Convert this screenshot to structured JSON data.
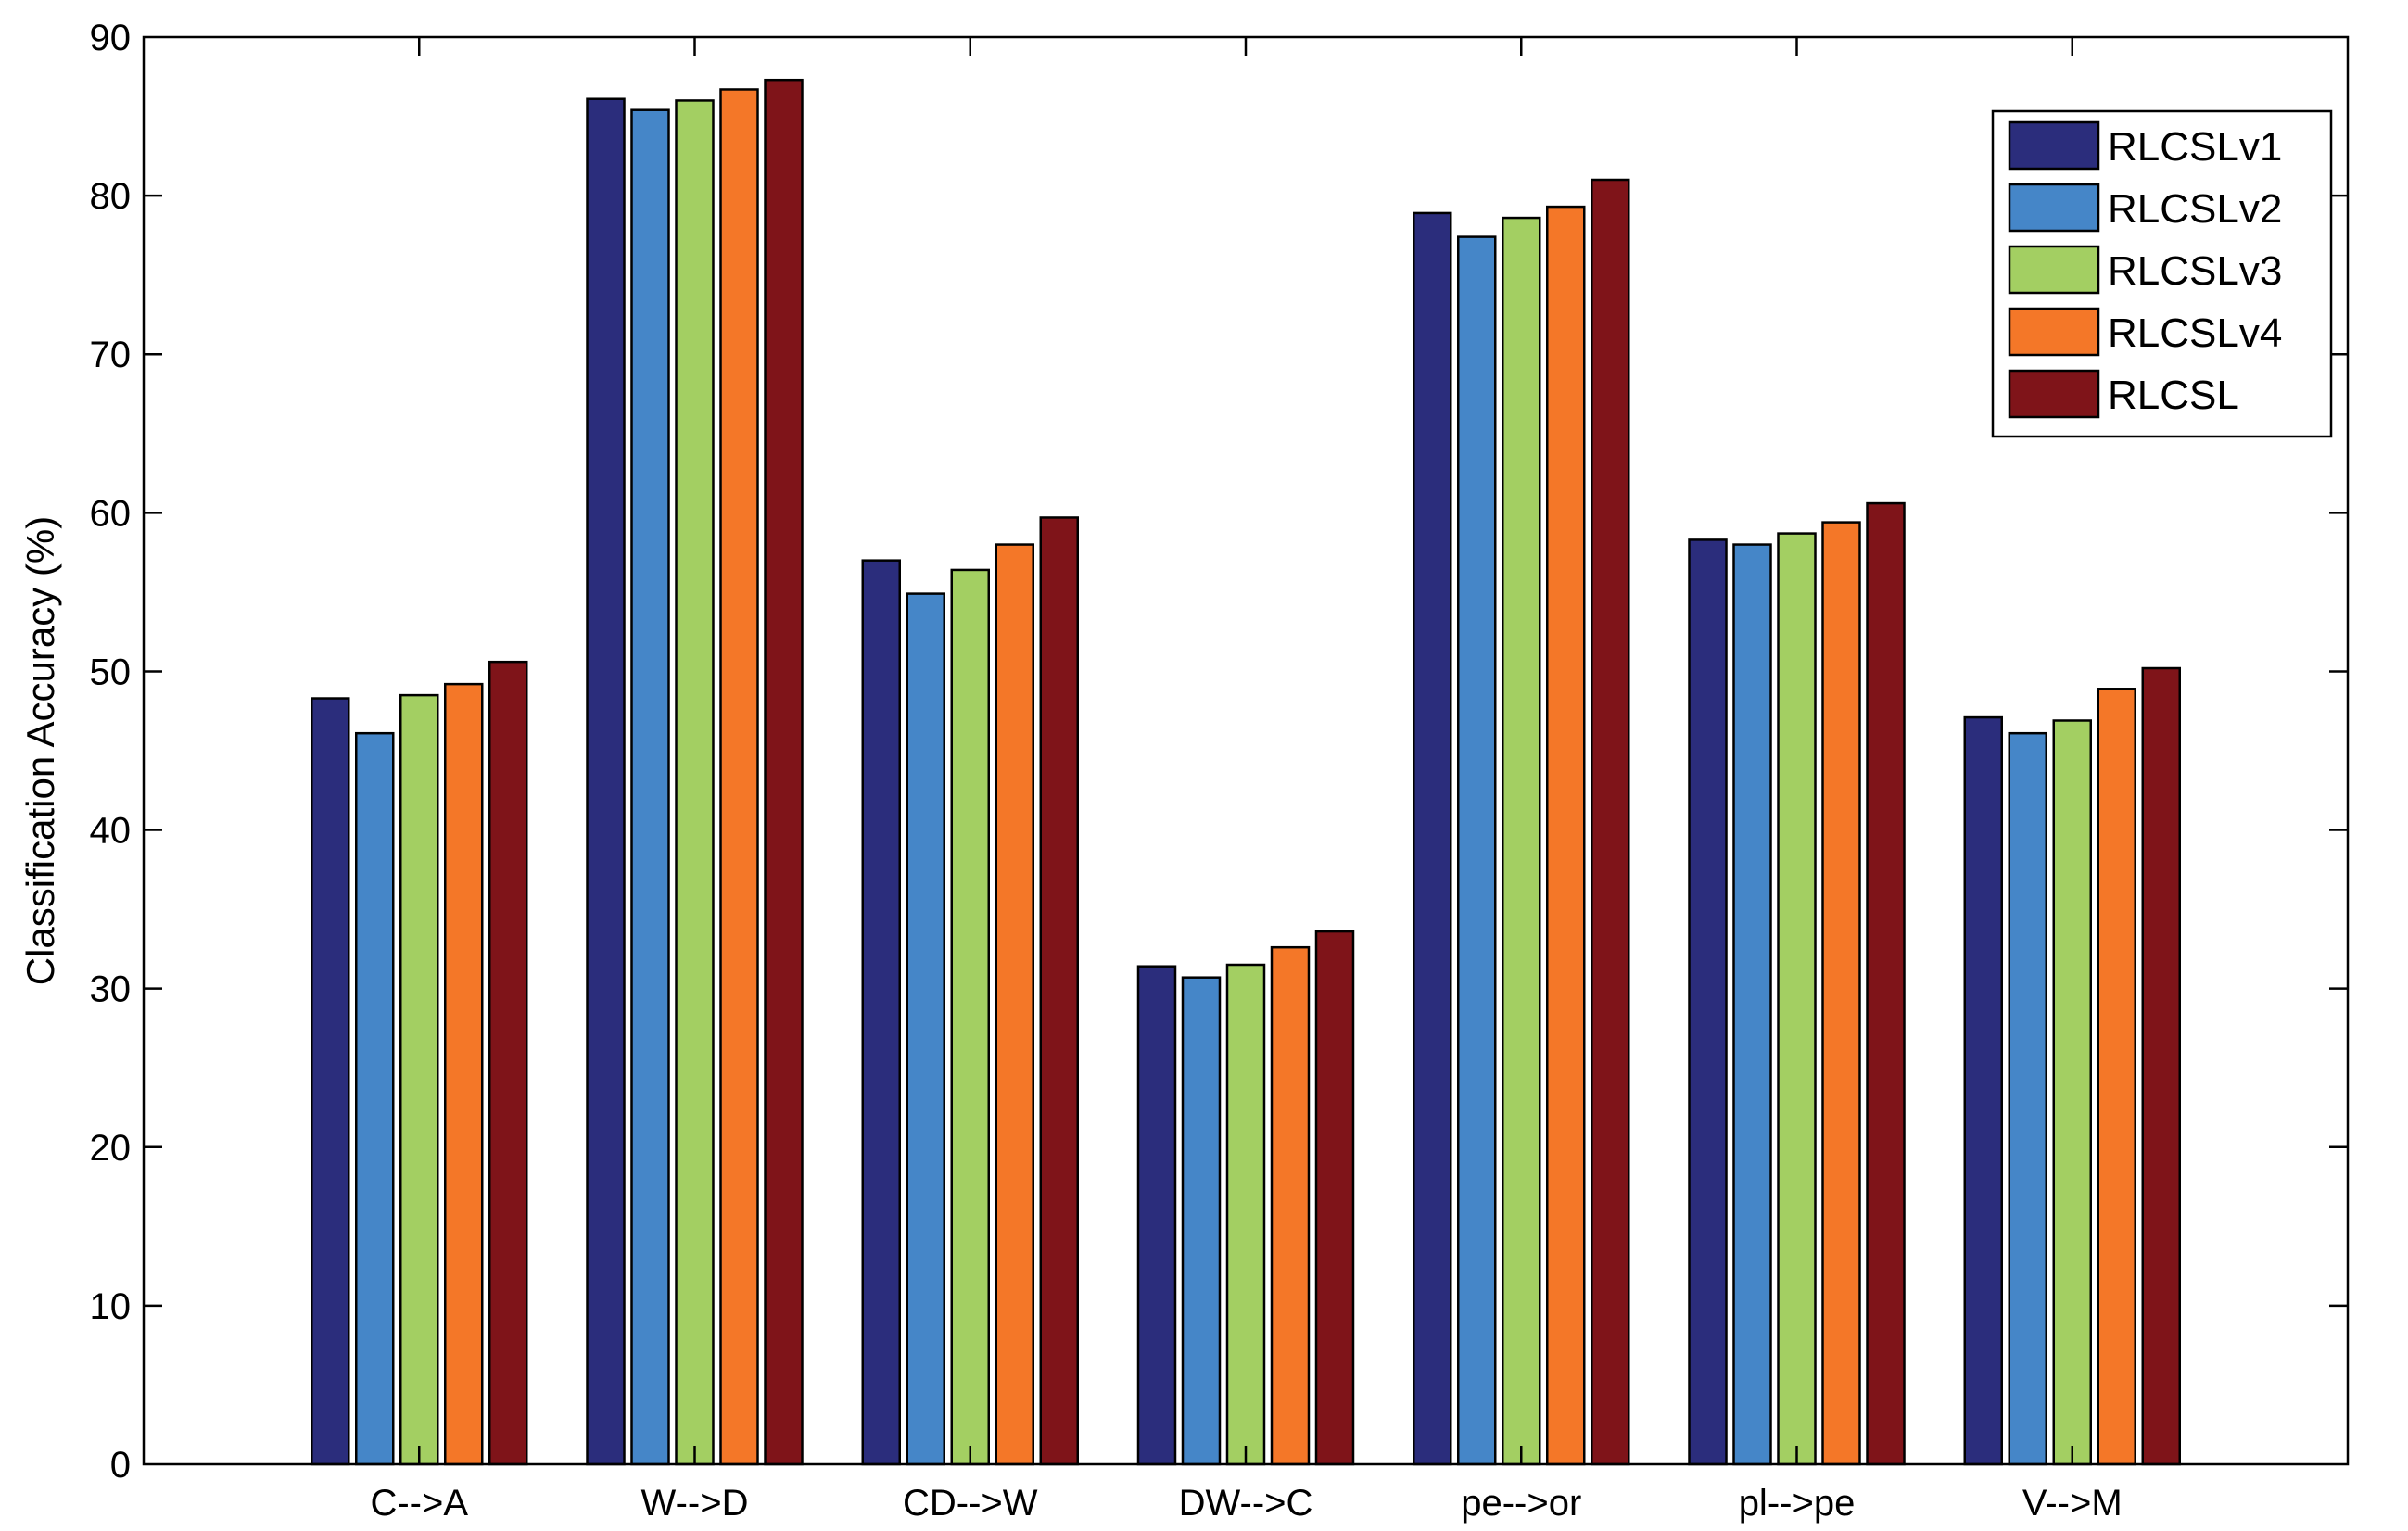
{
  "chart_data": {
    "type": "bar",
    "title": "",
    "xlabel": "",
    "ylabel": "Classification Accuracy (%)",
    "ylim": [
      0,
      90
    ],
    "yticks": [
      "0",
      "10",
      "20",
      "30",
      "40",
      "50",
      "60",
      "70",
      "80",
      "90"
    ],
    "grid": false,
    "legend_position": "top-right",
    "categories": [
      "C-->A",
      "W-->D",
      "CD-->W",
      "DW-->C",
      "pe-->or",
      "pl-->pe",
      "V-->M"
    ],
    "series": [
      {
        "name": "RLCSLv1",
        "color": "#2b2d7c",
        "values": [
          48.3,
          86.1,
          57.0,
          31.4,
          78.9,
          58.3,
          47.1
        ]
      },
      {
        "name": "RLCSLv2",
        "color": "#4586c8",
        "values": [
          46.1,
          85.4,
          54.9,
          30.7,
          77.4,
          58.0,
          46.1
        ]
      },
      {
        "name": "RLCSLv3",
        "color": "#a3cf62",
        "values": [
          48.5,
          86.0,
          56.4,
          31.5,
          78.6,
          58.7,
          46.9
        ]
      },
      {
        "name": "RLCSLv4",
        "color": "#f47728",
        "values": [
          49.2,
          86.7,
          58.0,
          32.6,
          79.3,
          59.4,
          48.9
        ]
      },
      {
        "name": "RLCSL",
        "color": "#7f1419",
        "values": [
          50.6,
          87.3,
          59.7,
          33.6,
          81.0,
          60.6,
          50.2
        ]
      }
    ]
  }
}
